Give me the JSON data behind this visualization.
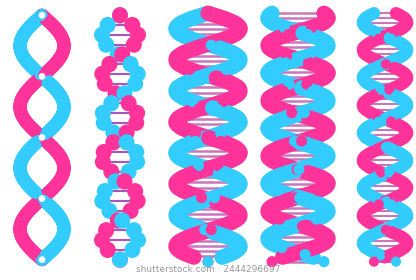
{
  "background_color": "#ffffff",
  "pink": "#FF3399",
  "blue": "#33CCFF",
  "figsize": [
    4.16,
    2.8
  ],
  "dpi": 100,
  "watermark": "shutterstock.com · 2444296697"
}
